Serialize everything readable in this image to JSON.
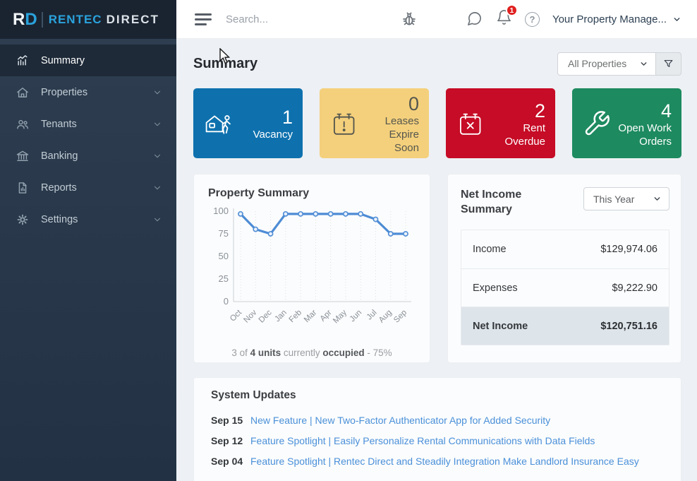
{
  "app": {
    "brand_r": "R",
    "brand_d": "D",
    "brand_name_primary": "RENTEC",
    "brand_name_secondary": "DIRECT"
  },
  "colors": {
    "brand_blue": "#2aa3dd",
    "link_blue": "#4a90d9",
    "badge_red": "#e01f1f",
    "chart_line": "#4e8cd5",
    "net_income_highlight_bg": "#dde4ea",
    "stat_blue": "#0e71ae",
    "stat_yellow": "#f4d07c",
    "stat_red": "#c60c26",
    "stat_green": "#1d8a60"
  },
  "topbar": {
    "search_placeholder": "Search...",
    "notification_count": "1",
    "help_label": "?",
    "user_menu_label": "Your Property Manage..."
  },
  "sidebar": {
    "items": [
      {
        "label": "Summary",
        "active": true
      },
      {
        "label": "Properties",
        "active": false
      },
      {
        "label": "Tenants",
        "active": false
      },
      {
        "label": "Banking",
        "active": false
      },
      {
        "label": "Reports",
        "active": false
      },
      {
        "label": "Settings",
        "active": false
      }
    ]
  },
  "page": {
    "title": "Summary",
    "property_filter_value": "All Properties"
  },
  "stat_cards": [
    {
      "value": "1",
      "label": "Vacancy",
      "color": "#0e71ae",
      "text_color": "#ffffff",
      "icon": "house-person-icon"
    },
    {
      "value": "0",
      "label": "Leases Expire Soon",
      "color": "#f4d07c",
      "text_color": "#55564e",
      "icon": "calendar-exclamation-icon"
    },
    {
      "value": "2",
      "label": "Rent Overdue",
      "color": "#c60c26",
      "text_color": "#ffffff",
      "icon": "calendar-x-icon"
    },
    {
      "value": "4",
      "label": "Open Work Orders",
      "color": "#1d8a60",
      "text_color": "#ffffff",
      "icon": "wrench-icon"
    }
  ],
  "property_summary": {
    "title": "Property Summary",
    "footer": {
      "part1": "3 of ",
      "bold1": "4 units",
      "part2": " currently ",
      "bold2": "occupied",
      "part3": " - 75%"
    }
  },
  "chart_data": {
    "type": "line",
    "title": "Property Summary",
    "x": [
      "Oct",
      "Nov",
      "Dec",
      "Jan",
      "Feb",
      "Mar",
      "Apr",
      "May",
      "Jun",
      "Jul",
      "Aug",
      "Sep"
    ],
    "series": [
      {
        "name": "Occupancy %",
        "values": [
          97,
          80,
          75,
          97,
          97,
          97,
          97,
          97,
          97,
          91,
          75,
          75
        ]
      }
    ],
    "ylim": [
      0,
      100
    ],
    "yticks": [
      0,
      25,
      50,
      75,
      100
    ],
    "xlabel": "",
    "ylabel": "",
    "grid": "vertical-dotted",
    "legend": "none",
    "line_color": "#4e8cd5"
  },
  "net_income": {
    "title": "Net Income Summary",
    "period_value": "This Year",
    "rows": [
      {
        "label": "Income",
        "value": "$129,974.06",
        "highlight": false
      },
      {
        "label": "Expenses",
        "value": "$9,222.90",
        "highlight": false
      },
      {
        "label": "Net Income",
        "value": "$120,751.16",
        "highlight": true
      }
    ]
  },
  "system_updates": {
    "title": "System Updates",
    "items": [
      {
        "date": "Sep 15",
        "text": "New Feature | New Two-Factor Authenticator App for Added Security"
      },
      {
        "date": "Sep 12",
        "text": "Feature Spotlight | Easily Personalize Rental Communications with Data Fields"
      },
      {
        "date": "Sep 04",
        "text": "Feature Spotlight | Rentec Direct and Steadily Integration Make Landlord Insurance Easy"
      }
    ]
  }
}
